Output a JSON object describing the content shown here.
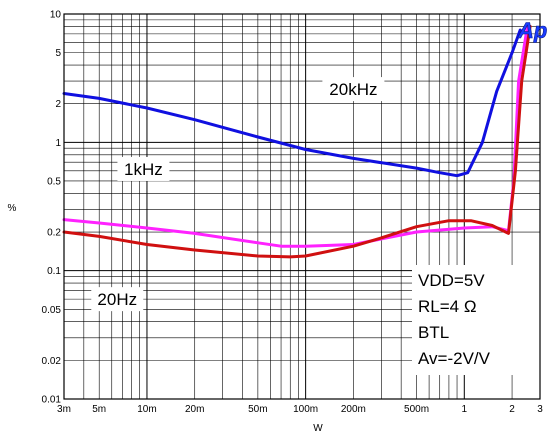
{
  "chart_data": {
    "type": "line",
    "title": "",
    "xlabel": "W",
    "ylabel": "%",
    "x_scale": "log",
    "y_scale": "log",
    "xlim": [
      0.003,
      3
    ],
    "ylim": [
      0.01,
      10
    ],
    "grid": true,
    "x_ticks": [
      {
        "value": 0.003,
        "label": "3m"
      },
      {
        "value": 0.005,
        "label": "5m"
      },
      {
        "value": 0.01,
        "label": "10m"
      },
      {
        "value": 0.02,
        "label": "20m"
      },
      {
        "value": 0.05,
        "label": "50m"
      },
      {
        "value": 0.1,
        "label": "100m"
      },
      {
        "value": 0.2,
        "label": "200m"
      },
      {
        "value": 0.5,
        "label": "500m"
      },
      {
        "value": 1,
        "label": "1"
      },
      {
        "value": 2,
        "label": "2"
      },
      {
        "value": 3,
        "label": "3"
      }
    ],
    "y_ticks": [
      {
        "value": 0.01,
        "label": "0.01"
      },
      {
        "value": 0.02,
        "label": "0.02"
      },
      {
        "value": 0.05,
        "label": "0.05"
      },
      {
        "value": 0.1,
        "label": "0.1"
      },
      {
        "value": 0.2,
        "label": "0.2"
      },
      {
        "value": 0.5,
        "label": "0.5"
      },
      {
        "value": 1,
        "label": "1"
      },
      {
        "value": 2,
        "label": "2"
      },
      {
        "value": 5,
        "label": "5"
      },
      {
        "value": 10,
        "label": "10"
      }
    ],
    "series": [
      {
        "name": "20kHz",
        "color": "#1010e0",
        "x": [
          0.003,
          0.005,
          0.01,
          0.02,
          0.05,
          0.1,
          0.2,
          0.5,
          0.7,
          0.9,
          1.05,
          1.3,
          1.6,
          2.0,
          2.25
        ],
        "y": [
          2.4,
          2.2,
          1.85,
          1.5,
          1.1,
          0.88,
          0.75,
          0.63,
          0.58,
          0.55,
          0.58,
          1.0,
          2.5,
          5.0,
          7.5
        ]
      },
      {
        "name": "1kHz",
        "color": "#ff22ff",
        "x": [
          0.003,
          0.005,
          0.01,
          0.02,
          0.05,
          0.07,
          0.1,
          0.2,
          0.5,
          1.0,
          1.5,
          1.9,
          2.05,
          2.2,
          2.5
        ],
        "y": [
          0.25,
          0.235,
          0.215,
          0.195,
          0.165,
          0.155,
          0.155,
          0.16,
          0.2,
          0.215,
          0.22,
          0.205,
          0.5,
          3.0,
          8.0
        ]
      },
      {
        "name": "20Hz",
        "color": "#d01010",
        "x": [
          0.003,
          0.005,
          0.01,
          0.02,
          0.05,
          0.08,
          0.1,
          0.2,
          0.3,
          0.5,
          0.8,
          1.1,
          1.5,
          1.9,
          2.1,
          2.3,
          2.6
        ],
        "y": [
          0.2,
          0.185,
          0.16,
          0.145,
          0.13,
          0.128,
          0.13,
          0.155,
          0.18,
          0.22,
          0.245,
          0.245,
          0.225,
          0.195,
          0.6,
          3.0,
          8.0
        ]
      }
    ],
    "annotations": [
      {
        "text": "20kHz",
        "x": 0.2,
        "y": 2.6
      },
      {
        "text": "1kHz",
        "x": 0.0095,
        "y": 0.62
      },
      {
        "text": "20Hz",
        "x": 0.0065,
        "y": 0.06
      }
    ],
    "conditions": [
      "VDD=5V",
      "RL=4 Ω",
      "BTL",
      "Av=-2V/V"
    ],
    "logo": "Ap"
  }
}
